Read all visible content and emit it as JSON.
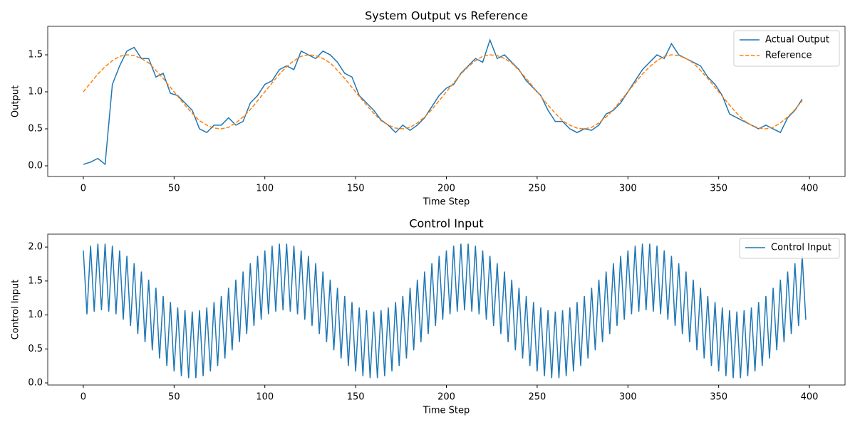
{
  "chart_data": [
    {
      "type": "line",
      "title": "System Output vs Reference",
      "xlabel": "Time Step",
      "ylabel": "Output",
      "xlim": [
        -19.6,
        419.6
      ],
      "ylim": [
        -0.144,
        1.885
      ],
      "xticks": [
        0,
        50,
        100,
        150,
        200,
        250,
        300,
        350,
        400
      ],
      "yticks": [
        {
          "value": 0,
          "label": "0.0"
        },
        {
          "value": 0.5,
          "label": "0.5"
        },
        {
          "value": 1,
          "label": "1.0"
        },
        {
          "value": 1.5,
          "label": "1.5"
        }
      ],
      "legend": "upper right",
      "x": [
        0,
        4,
        8,
        12,
        16,
        20,
        24,
        28,
        32,
        36,
        40,
        44,
        48,
        52,
        56,
        60,
        64,
        68,
        72,
        76,
        80,
        84,
        88,
        92,
        96,
        100,
        104,
        108,
        112,
        116,
        120,
        124,
        128,
        132,
        136,
        140,
        144,
        148,
        152,
        156,
        160,
        164,
        168,
        172,
        176,
        180,
        184,
        188,
        192,
        196,
        200,
        204,
        208,
        212,
        216,
        220,
        224,
        228,
        232,
        236,
        240,
        244,
        248,
        252,
        256,
        260,
        264,
        268,
        272,
        276,
        280,
        284,
        288,
        292,
        296,
        300,
        304,
        308,
        312,
        316,
        320,
        324,
        328,
        332,
        336,
        340,
        344,
        348,
        352,
        356,
        360,
        364,
        368,
        372,
        376,
        380,
        384,
        388,
        392,
        396
      ],
      "series": [
        {
          "name": "Actual Output",
          "color": "#1f77b4",
          "linestyle": "solid",
          "values": [
            0.02,
            0.05,
            0.1,
            0.02,
            1.1,
            1.35,
            1.55,
            1.6,
            1.45,
            1.45,
            1.2,
            1.25,
            0.98,
            0.95,
            0.85,
            0.75,
            0.5,
            0.45,
            0.55,
            0.55,
            0.65,
            0.55,
            0.6,
            0.85,
            0.95,
            1.1,
            1.15,
            1.3,
            1.35,
            1.3,
            1.55,
            1.5,
            1.45,
            1.55,
            1.5,
            1.4,
            1.25,
            1.2,
            0.95,
            0.85,
            0.75,
            0.62,
            0.55,
            0.45,
            0.55,
            0.48,
            0.55,
            0.65,
            0.8,
            0.95,
            1.05,
            1.1,
            1.25,
            1.35,
            1.45,
            1.4,
            1.7,
            1.45,
            1.5,
            1.4,
            1.3,
            1.15,
            1.05,
            0.95,
            0.75,
            0.6,
            0.6,
            0.5,
            0.45,
            0.5,
            0.48,
            0.55,
            0.7,
            0.75,
            0.85,
            1.0,
            1.15,
            1.3,
            1.4,
            1.5,
            1.45,
            1.65,
            1.5,
            1.45,
            1.4,
            1.35,
            1.2,
            1.1,
            0.95,
            0.7,
            0.65,
            0.6,
            0.55,
            0.5,
            0.55,
            0.5,
            0.45,
            0.65,
            0.75,
            0.9
          ]
        },
        {
          "name": "Reference",
          "color": "#ff7f0e",
          "linestyle": "dashed",
          "values": [
            1.0,
            1.12,
            1.24,
            1.34,
            1.42,
            1.48,
            1.5,
            1.49,
            1.45,
            1.39,
            1.29,
            1.18,
            1.06,
            0.94,
            0.82,
            0.71,
            0.61,
            0.55,
            0.51,
            0.5,
            0.52,
            0.58,
            0.66,
            0.76,
            0.88,
            1.0,
            1.12,
            1.24,
            1.34,
            1.42,
            1.48,
            1.5,
            1.49,
            1.45,
            1.39,
            1.29,
            1.18,
            1.06,
            0.94,
            0.82,
            0.71,
            0.61,
            0.55,
            0.51,
            0.5,
            0.52,
            0.58,
            0.66,
            0.76,
            0.88,
            1.0,
            1.12,
            1.24,
            1.34,
            1.42,
            1.48,
            1.5,
            1.49,
            1.45,
            1.39,
            1.29,
            1.18,
            1.06,
            0.94,
            0.82,
            0.71,
            0.61,
            0.55,
            0.51,
            0.5,
            0.52,
            0.58,
            0.66,
            0.76,
            0.88,
            1.0,
            1.12,
            1.24,
            1.34,
            1.42,
            1.48,
            1.5,
            1.49,
            1.45,
            1.39,
            1.29,
            1.18,
            1.06,
            0.94,
            0.82,
            0.71,
            0.61,
            0.55,
            0.51,
            0.5,
            0.52,
            0.58,
            0.66,
            0.76,
            0.88
          ]
        }
      ]
    },
    {
      "type": "line",
      "title": "Control Input",
      "xlabel": "Time Step",
      "ylabel": "Control Input",
      "xlim": [
        -19.6,
        419.6
      ],
      "ylim": [
        -0.031,
        2.19
      ],
      "xticks": [
        0,
        50,
        100,
        150,
        200,
        250,
        300,
        350,
        400
      ],
      "yticks": [
        {
          "value": 0,
          "label": "0.0"
        },
        {
          "value": 0.5,
          "label": "0.5"
        },
        {
          "value": 1,
          "label": "1.0"
        },
        {
          "value": 1.5,
          "label": "1.5"
        },
        {
          "value": 2,
          "label": "2.0"
        }
      ],
      "legend": "upper right",
      "x": [
        0,
        2,
        4,
        6,
        8,
        10,
        12,
        14,
        16,
        18,
        20,
        22,
        24,
        26,
        28,
        30,
        32,
        34,
        36,
        38,
        40,
        42,
        44,
        46,
        48,
        50,
        52,
        54,
        56,
        58,
        60,
        62,
        64,
        66,
        68,
        70,
        72,
        74,
        76,
        78,
        80,
        82,
        84,
        86,
        88,
        90,
        92,
        94,
        96,
        98,
        100,
        102,
        104,
        106,
        108,
        110,
        112,
        114,
        116,
        118,
        120,
        122,
        124,
        126,
        128,
        130,
        132,
        134,
        136,
        138,
        140,
        142,
        144,
        146,
        148,
        150,
        152,
        154,
        156,
        158,
        160,
        162,
        164,
        166,
        168,
        170,
        172,
        174,
        176,
        178,
        180,
        182,
        184,
        186,
        188,
        190,
        192,
        194,
        196,
        198,
        200,
        202,
        204,
        206,
        208,
        210,
        212,
        214,
        216,
        218,
        220,
        222,
        224,
        226,
        228,
        230,
        232,
        234,
        236,
        238,
        240,
        242,
        244,
        246,
        248,
        250,
        252,
        254,
        256,
        258,
        260,
        262,
        264,
        266,
        268,
        270,
        272,
        274,
        276,
        278,
        280,
        282,
        284,
        286,
        288,
        290,
        292,
        294,
        296,
        298,
        300,
        302,
        304,
        306,
        308,
        310,
        312,
        314,
        316,
        318,
        320,
        322,
        324,
        326,
        328,
        330,
        332,
        334,
        336,
        338,
        340,
        342,
        344,
        346,
        348,
        350,
        352,
        354,
        356,
        358,
        360,
        362,
        364,
        366,
        368,
        370,
        372,
        374,
        376,
        378,
        380,
        382,
        384,
        386,
        388,
        390,
        392,
        394,
        396,
        398
      ],
      "series": [
        {
          "name": "Control Input",
          "color": "#1f77b4",
          "linestyle": "solid",
          "values": [
            1.95,
            1.01,
            2.02,
            1.05,
            2.05,
            1.07,
            2.05,
            1.05,
            2.02,
            1.01,
            1.95,
            0.93,
            1.87,
            0.84,
            1.76,
            0.72,
            1.64,
            0.6,
            1.52,
            0.48,
            1.4,
            0.36,
            1.28,
            0.25,
            1.19,
            0.17,
            1.11,
            0.1,
            1.07,
            0.07,
            1.05,
            0.07,
            1.07,
            0.1,
            1.11,
            0.17,
            1.19,
            0.25,
            1.28,
            0.36,
            1.4,
            0.48,
            1.52,
            0.6,
            1.64,
            0.72,
            1.76,
            0.84,
            1.87,
            0.93,
            1.95,
            1.01,
            2.02,
            1.05,
            2.05,
            1.07,
            2.05,
            1.05,
            2.02,
            1.01,
            1.95,
            0.93,
            1.87,
            0.84,
            1.76,
            0.72,
            1.64,
            0.6,
            1.52,
            0.48,
            1.4,
            0.36,
            1.28,
            0.25,
            1.19,
            0.17,
            1.11,
            0.1,
            1.07,
            0.07,
            1.05,
            0.07,
            1.07,
            0.1,
            1.11,
            0.17,
            1.19,
            0.25,
            1.28,
            0.36,
            1.4,
            0.48,
            1.52,
            0.6,
            1.64,
            0.72,
            1.76,
            0.84,
            1.87,
            0.93,
            1.95,
            1.01,
            2.02,
            1.05,
            2.05,
            1.07,
            2.05,
            1.05,
            2.02,
            1.01,
            1.95,
            0.93,
            1.87,
            0.84,
            1.76,
            0.72,
            1.64,
            0.6,
            1.52,
            0.48,
            1.4,
            0.36,
            1.28,
            0.25,
            1.19,
            0.17,
            1.11,
            0.1,
            1.07,
            0.07,
            1.05,
            0.07,
            1.07,
            0.1,
            1.11,
            0.17,
            1.19,
            0.25,
            1.28,
            0.36,
            1.4,
            0.48,
            1.52,
            0.6,
            1.64,
            0.72,
            1.76,
            0.84,
            1.87,
            0.93,
            1.95,
            1.01,
            2.02,
            1.05,
            2.05,
            1.07,
            2.05,
            1.05,
            2.02,
            1.01,
            1.95,
            0.93,
            1.87,
            0.84,
            1.76,
            0.72,
            1.64,
            0.6,
            1.52,
            0.48,
            1.4,
            0.36,
            1.28,
            0.25,
            1.19,
            0.17,
            1.11,
            0.1,
            1.07,
            0.07,
            1.05,
            0.07,
            1.07,
            0.1,
            1.11,
            0.17,
            1.19,
            0.25,
            1.28,
            0.36,
            1.4,
            0.48,
            1.52,
            0.6,
            1.64,
            0.72,
            1.76,
            0.84,
            1.87,
            0.93
          ]
        }
      ]
    }
  ]
}
